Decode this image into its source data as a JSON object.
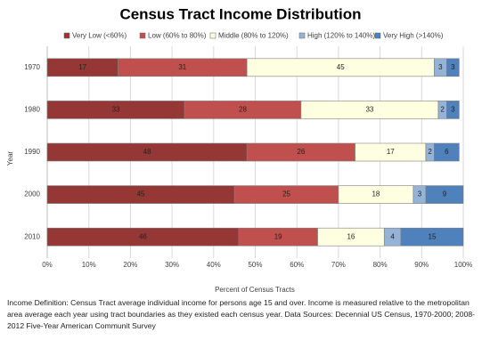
{
  "chart_data": {
    "type": "stacked-bar-horizontal",
    "title": "Census Tract Income Distribution",
    "categories": [
      "1970",
      "1980",
      "1990",
      "2000",
      "2010"
    ],
    "series": [
      {
        "name": "Very Low (<60%)",
        "color": "#953735",
        "values": [
          17,
          33,
          48,
          45,
          46
        ]
      },
      {
        "name": "Low (60% to 80%)",
        "color": "#c0504d",
        "values": [
          31,
          28,
          26,
          25,
          19
        ]
      },
      {
        "name": "Middle (80% to 120%)",
        "color": "#fefee0",
        "values": [
          45,
          33,
          17,
          18,
          16
        ]
      },
      {
        "name": "High (120% to 140%)",
        "color": "#95b3d7",
        "values": [
          3,
          2,
          2,
          3,
          4
        ]
      },
      {
        "name": "Very High (>140%)",
        "color": "#4f81bd",
        "values": [
          3,
          3,
          6,
          9,
          15
        ]
      }
    ],
    "xlim": [
      0,
      100
    ],
    "xticks": [
      {
        "value": 0,
        "label": "0%"
      },
      {
        "value": 10,
        "label": "10%"
      },
      {
        "value": 20,
        "label": "20%"
      },
      {
        "value": 30,
        "label": "30%"
      },
      {
        "value": 40,
        "label": "40%"
      },
      {
        "value": 50,
        "label": "50%"
      },
      {
        "value": 60,
        "label": "60%"
      },
      {
        "value": 70,
        "label": "70%"
      },
      {
        "value": 80,
        "label": "80%"
      },
      {
        "value": 90,
        "label": "90%"
      },
      {
        "value": 100,
        "label": "100%"
      }
    ],
    "x_label": "Percent of Census Tracts",
    "y_label": "Year",
    "grid": true,
    "legend": "top",
    "footnote": "Income Definition: Census Tract average individual income for persons age 15 and over.  Income is measured relative to the metropolitan area average each year using tract boundaries as they existed each census year. Data Sources: Decennial US Census, 1970-2000; 2008-2012 Five-Year American Communit Survey"
  }
}
